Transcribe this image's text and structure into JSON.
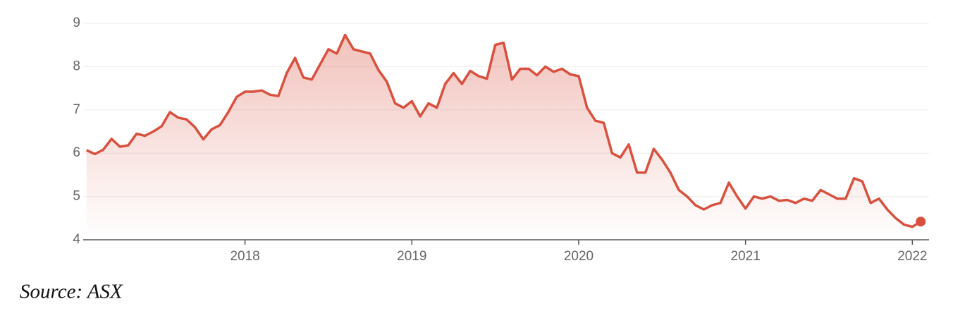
{
  "chart_data": {
    "type": "line",
    "source": "Source: ASX",
    "x": [
      2017.05,
      2017.1,
      2017.15,
      2017.2,
      2017.25,
      2017.3,
      2017.35,
      2017.4,
      2017.45,
      2017.5,
      2017.55,
      2017.6,
      2017.65,
      2017.7,
      2017.75,
      2017.8,
      2017.85,
      2017.9,
      2017.95,
      2018.0,
      2018.05,
      2018.1,
      2018.15,
      2018.2,
      2018.25,
      2018.3,
      2018.35,
      2018.4,
      2018.45,
      2018.5,
      2018.55,
      2018.6,
      2018.65,
      2018.7,
      2018.75,
      2018.8,
      2018.85,
      2018.9,
      2018.95,
      2019.0,
      2019.05,
      2019.1,
      2019.15,
      2019.2,
      2019.25,
      2019.3,
      2019.35,
      2019.4,
      2019.45,
      2019.5,
      2019.55,
      2019.6,
      2019.65,
      2019.7,
      2019.75,
      2019.8,
      2019.85,
      2019.9,
      2019.95,
      2020.0,
      2020.05,
      2020.1,
      2020.15,
      2020.2,
      2020.25,
      2020.3,
      2020.35,
      2020.4,
      2020.45,
      2020.5,
      2020.55,
      2020.6,
      2020.65,
      2020.7,
      2020.75,
      2020.8,
      2020.85,
      2020.9,
      2020.95,
      2021.0,
      2021.05,
      2021.1,
      2021.15,
      2021.2,
      2021.25,
      2021.3,
      2021.35,
      2021.4,
      2021.45,
      2021.5,
      2021.55,
      2021.6,
      2021.65,
      2021.7,
      2021.75,
      2021.8,
      2021.85,
      2021.9,
      2021.95,
      2022.0,
      2022.05
    ],
    "series": [
      {
        "color": "#d9503f",
        "values": [
          6.07,
          5.98,
          6.08,
          6.33,
          6.15,
          6.18,
          6.45,
          6.4,
          6.5,
          6.62,
          6.95,
          6.82,
          6.78,
          6.6,
          6.32,
          6.55,
          6.65,
          6.95,
          7.3,
          7.42,
          7.42,
          7.45,
          7.35,
          7.32,
          7.85,
          8.2,
          7.75,
          7.7,
          8.05,
          8.4,
          8.3,
          8.73,
          8.4,
          8.35,
          8.3,
          7.92,
          7.65,
          7.15,
          7.05,
          7.2,
          6.85,
          7.15,
          7.05,
          7.6,
          7.85,
          7.6,
          7.9,
          7.78,
          7.72,
          8.5,
          8.55,
          7.7,
          7.95,
          7.95,
          7.8,
          8.0,
          7.88,
          7.95,
          7.82,
          7.78,
          7.05,
          6.75,
          6.7,
          6.0,
          5.9,
          6.2,
          5.55,
          5.55,
          6.1,
          5.85,
          5.55,
          5.15,
          5.0,
          4.8,
          4.7,
          4.8,
          4.85,
          5.32,
          5.0,
          4.72,
          5.0,
          4.95,
          5.0,
          4.9,
          4.92,
          4.85,
          4.95,
          4.9,
          5.15,
          5.05,
          4.95,
          4.95,
          5.42,
          5.35,
          4.85,
          4.95,
          4.7,
          4.5,
          4.35,
          4.3,
          4.42
        ]
      }
    ],
    "xlim": [
      2017.03,
      2022.1
    ],
    "xticks": [
      2018,
      2019,
      2020,
      2021,
      2022
    ],
    "ylim": [
      4,
      9
    ],
    "yticks": [
      4,
      5,
      6,
      7,
      8,
      9
    ],
    "grid": true
  }
}
